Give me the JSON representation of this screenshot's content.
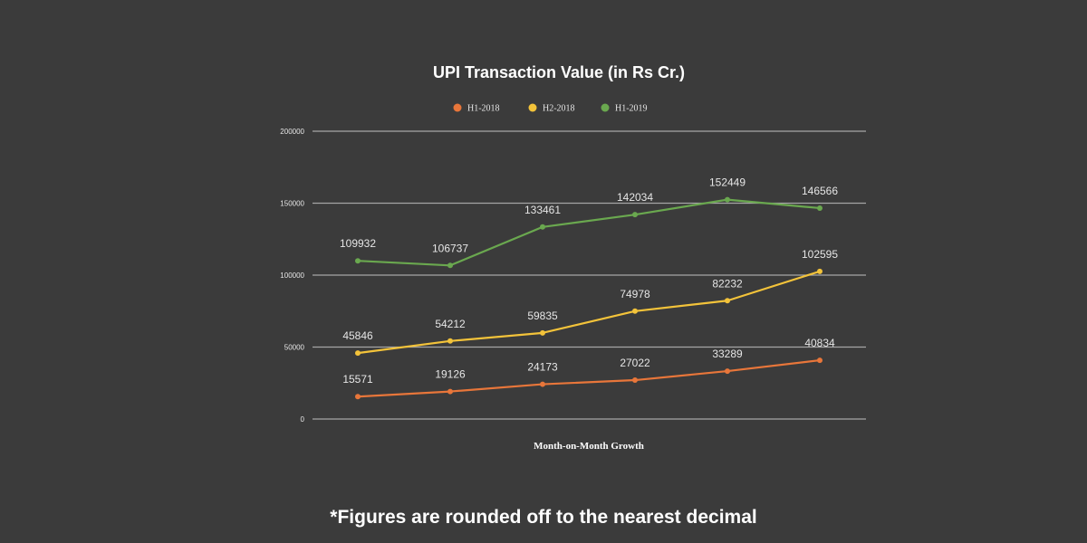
{
  "chart_data": {
    "type": "line",
    "title": "UPI Transaction Value (in Rs Cr.)",
    "xlabel": "Month-on-Month Growth",
    "ylabel": "",
    "ylim": [
      0,
      200000
    ],
    "yticks": [
      0,
      50000,
      100000,
      150000,
      200000
    ],
    "ytick_labels": [
      "0",
      "50000",
      "100000",
      "150000",
      "200000"
    ],
    "grid": true,
    "legend_position": "top-center",
    "series": [
      {
        "name": "H1-2018",
        "color": "#e8763a",
        "values": [
          15571,
          19126,
          24173,
          27022,
          33289,
          40834
        ]
      },
      {
        "name": "H2-2018",
        "color": "#f3c33a",
        "values": [
          45846,
          54212,
          59835,
          74978,
          82232,
          102595
        ]
      },
      {
        "name": "H1-2019",
        "color": "#6aa84f",
        "values": [
          109932,
          106737,
          133461,
          142034,
          152449,
          146566
        ]
      }
    ]
  },
  "footnote": "*Figures are rounded off to the nearest decimal"
}
